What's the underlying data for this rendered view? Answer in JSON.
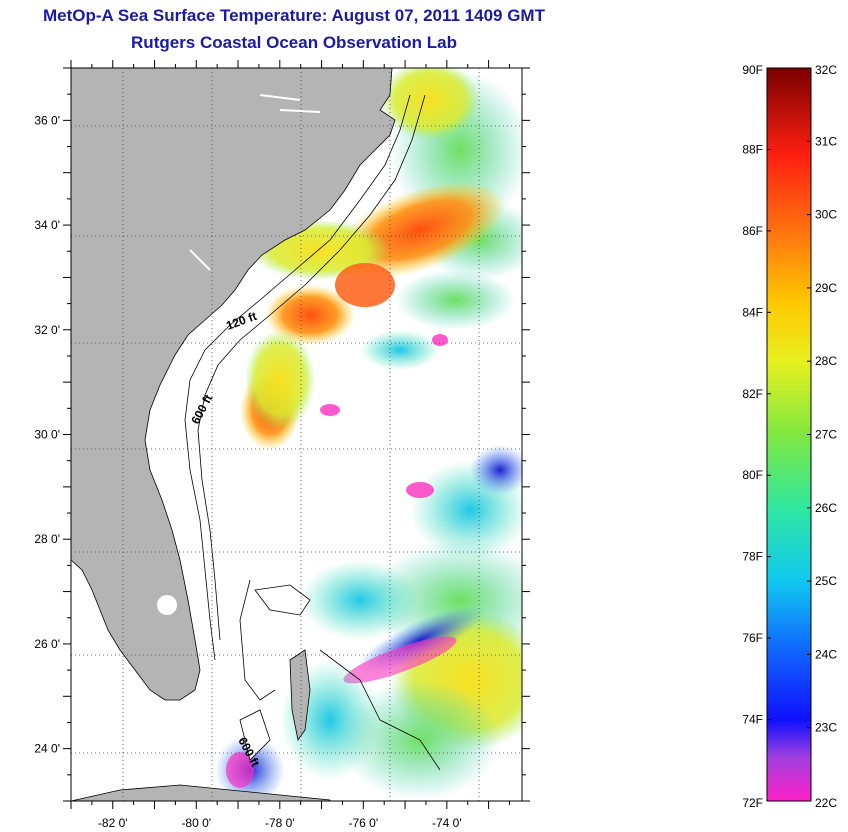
{
  "header": {
    "title": "MetOp-A Sea Surface Temperature:  August 07, 2011 1409 GMT",
    "subtitle": "Rutgers Coastal Ocean Observation Lab"
  },
  "map": {
    "lon_range": [
      -83,
      -72.2
    ],
    "lat_range": [
      23,
      37
    ],
    "lon_ticks": [
      {
        "value": -82,
        "label": "-82 0'"
      },
      {
        "value": -80,
        "label": "-80 0'"
      },
      {
        "value": -78,
        "label": "-78 0'"
      },
      {
        "value": -76,
        "label": "-76 0'"
      },
      {
        "value": -74,
        "label": "-74 0'"
      }
    ],
    "lat_ticks": [
      {
        "value": 36,
        "label": "36 0'"
      },
      {
        "value": 34,
        "label": "34 0'"
      },
      {
        "value": 32,
        "label": "32 0'"
      },
      {
        "value": 30,
        "label": "30 0'"
      },
      {
        "value": 28,
        "label": "28 0'"
      },
      {
        "value": 26,
        "label": "26 0'"
      },
      {
        "value": 24,
        "label": "24 0'"
      }
    ],
    "contours": [
      {
        "label": "120 ft"
      },
      {
        "label": "600 ft"
      },
      {
        "label": "600 ft"
      }
    ],
    "land_color": "#b4b4b4",
    "gridlines": "dotted"
  },
  "colorbar": {
    "f_labels": [
      "90F",
      "88F",
      "86F",
      "84F",
      "82F",
      "80F",
      "78F",
      "76F",
      "74F",
      "72F"
    ],
    "c_labels": [
      "32C",
      "31C",
      "30C",
      "29C",
      "28C",
      "27C",
      "26C",
      "25C",
      "24C",
      "23C",
      "22C"
    ],
    "range_c": [
      22,
      32
    ],
    "range_f": [
      72,
      90
    ]
  }
}
